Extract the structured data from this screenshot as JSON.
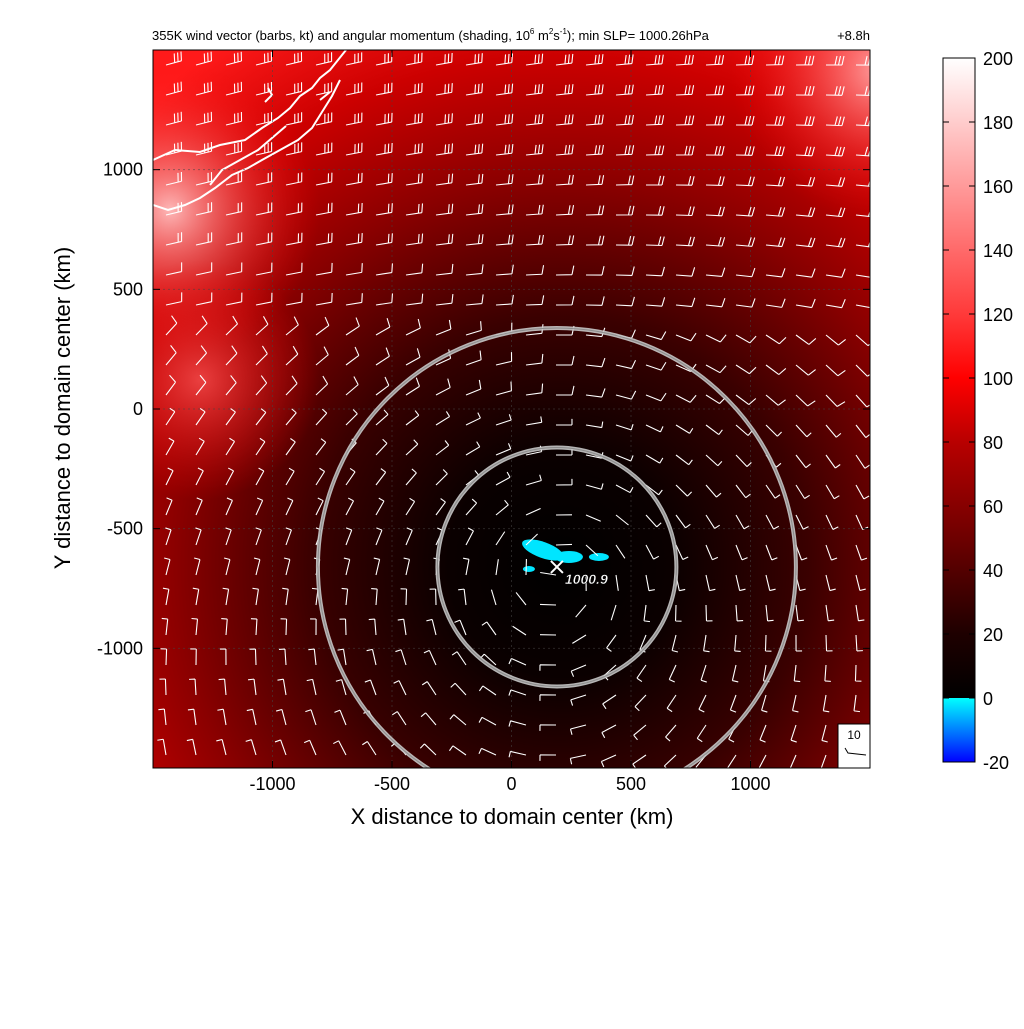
{
  "chart_data": {
    "type": "heatmap",
    "title_main": "355K wind vector (barbs, kt) and angular momentum (shading, 10",
    "title_exp1": "6",
    "title_mid1": " m",
    "title_exp2": "2",
    "title_mid2": "s",
    "title_exp3": "-1",
    "title_end": "); min SLP= 1000.26hPa",
    "time_label": "+8.8h",
    "xlabel": "X distance to domain center (km)",
    "ylabel": "Y distance to domain center (km)",
    "xlim": [
      -1500,
      1500
    ],
    "ylim": [
      -1500,
      1500
    ],
    "xticks": [
      -1000,
      -500,
      0,
      500,
      1000
    ],
    "yticks": [
      -1000,
      -500,
      0,
      500,
      1000
    ],
    "grid": true,
    "colorbar": {
      "range": [
        -20,
        200
      ],
      "ticks": [
        -20,
        0,
        20,
        40,
        60,
        80,
        100,
        120,
        140,
        160,
        180,
        200
      ],
      "stops": [
        {
          "v": -20,
          "c": "#0000ff"
        },
        {
          "v": -5,
          "c": "#00bfff"
        },
        {
          "v": 0,
          "c": "#00ffff"
        },
        {
          "v": 0.01,
          "c": "#000000"
        },
        {
          "v": 20,
          "c": "#1e0000"
        },
        {
          "v": 50,
          "c": "#6e0000"
        },
        {
          "v": 80,
          "c": "#b80000"
        },
        {
          "v": 100,
          "c": "#ff0000"
        },
        {
          "v": 120,
          "c": "#ff3a3a"
        },
        {
          "v": 160,
          "c": "#ff9a9a"
        },
        {
          "v": 200,
          "c": "#ffffff"
        }
      ]
    },
    "center": {
      "x": 190,
      "y": -660,
      "slp_label": "1000.9"
    },
    "range_rings_km": [
      500,
      1000
    ],
    "barb_reference": {
      "label": "10",
      "speed_kt": 10
    }
  }
}
